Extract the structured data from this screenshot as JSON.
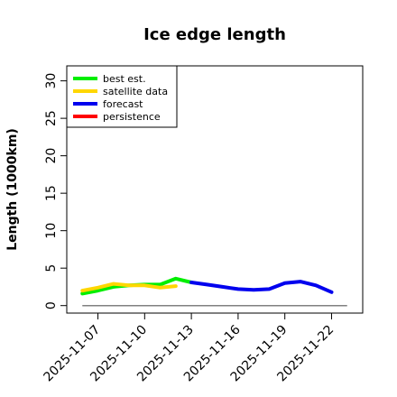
{
  "chart_data": {
    "type": "line",
    "title": "Ice edge length",
    "ylabel": "Length (1000km)",
    "xlabel": "",
    "ylim": [
      -1,
      32
    ],
    "yticks": [
      0,
      5,
      10,
      15,
      20,
      25,
      30
    ],
    "xlim": [
      "2025-11-05",
      "2025-11-24"
    ],
    "xticks": [
      {
        "label": "2025-11-07",
        "date": "2025-11-07",
        "color": "#000000"
      },
      {
        "label": "2025-11-10",
        "date": "2025-11-10",
        "color": "#000000"
      },
      {
        "label": "2025-11-13",
        "date": "2025-11-13",
        "color": "#228B22"
      },
      {
        "label": "2025-11-16",
        "date": "2025-11-16",
        "color": "#000000"
      },
      {
        "label": "2025-11-19",
        "date": "2025-11-19",
        "color": "#000000"
      },
      {
        "label": "2025-11-22",
        "date": "2025-11-22",
        "color": "#000000"
      }
    ],
    "legend_position": "top-left",
    "reference_line": {
      "y": 0,
      "from": "2025-11-06",
      "to": "2025-11-23",
      "color": "#808080"
    },
    "series": [
      {
        "name": "best est.",
        "color": "#00EE00",
        "x": [
          "2025-11-06",
          "2025-11-07",
          "2025-11-08",
          "2025-11-09",
          "2025-11-10",
          "2025-11-11",
          "2025-11-12",
          "2025-11-13"
        ],
        "y": [
          1.6,
          2.0,
          2.5,
          2.7,
          2.8,
          2.8,
          3.6,
          3.1
        ]
      },
      {
        "name": "satellite data",
        "color": "#FFD700",
        "x": [
          "2025-11-06",
          "2025-11-07",
          "2025-11-08",
          "2025-11-09",
          "2025-11-10",
          "2025-11-11",
          "2025-11-12"
        ],
        "y": [
          2.0,
          2.4,
          2.9,
          2.7,
          2.7,
          2.4,
          2.6
        ]
      },
      {
        "name": "forecast",
        "color": "#0000EE",
        "x": [
          "2025-11-13",
          "2025-11-14",
          "2025-11-15",
          "2025-11-16",
          "2025-11-17",
          "2025-11-18",
          "2025-11-19",
          "2025-11-20",
          "2025-11-21",
          "2025-11-22"
        ],
        "y": [
          3.1,
          2.8,
          2.5,
          2.2,
          2.1,
          2.2,
          3.0,
          3.2,
          2.7,
          1.8
        ]
      },
      {
        "name": "persistence",
        "color": "#FF0000",
        "x": [],
        "y": []
      }
    ]
  }
}
